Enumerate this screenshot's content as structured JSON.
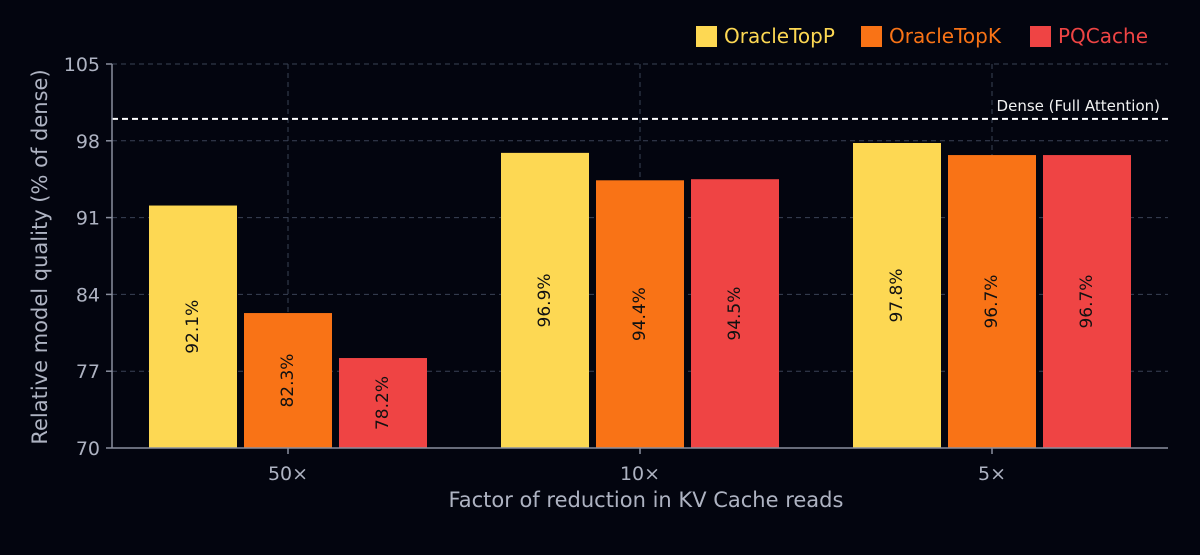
{
  "chart_data": {
    "type": "bar",
    "categories": [
      "50×",
      "10×",
      "5×"
    ],
    "series": [
      {
        "name": "OracleTopP",
        "color": "#fdd853",
        "values": [
          92.1,
          96.9,
          97.8
        ],
        "labels": [
          "92.1%",
          "96.9%",
          "97.8%"
        ]
      },
      {
        "name": "OracleTopK",
        "color": "#f97316",
        "values": [
          82.3,
          94.4,
          96.7
        ],
        "labels": [
          "82.3%",
          "94.4%",
          "96.7%"
        ]
      },
      {
        "name": "PQCache",
        "color": "#ef4444",
        "values": [
          78.2,
          94.5,
          96.7
        ],
        "labels": [
          "78.2%",
          "94.5%",
          "96.7%"
        ]
      }
    ],
    "xlabel": "Factor of reduction in KV Cache reads",
    "ylabel": "Relative model quality (% of dense)",
    "ylim": [
      70,
      105
    ],
    "yticks": [
      70,
      77,
      84,
      91,
      98,
      105
    ],
    "reference_line": {
      "value": 100,
      "label": "Dense (Full Attention)"
    },
    "grid": true,
    "legend_position": "top-right"
  }
}
